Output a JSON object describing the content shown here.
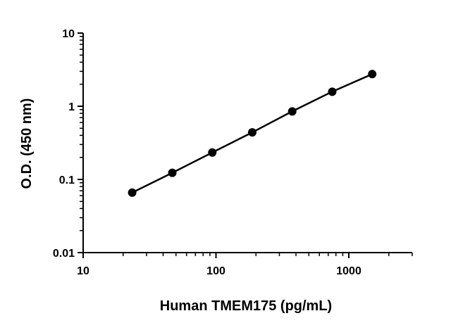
{
  "chart_data": {
    "type": "scatter",
    "title": "",
    "xlabel": "Human TMEM175 (pg/mL)",
    "ylabel": "O.D. (450 nm)",
    "x_scale": "log",
    "y_scale": "log",
    "xlim": [
      10,
      3000
    ],
    "ylim": [
      0.01,
      10
    ],
    "grid": false,
    "legend": "none",
    "x_ticks": [
      {
        "value": 10,
        "label": "10"
      },
      {
        "value": 100,
        "label": "100"
      },
      {
        "value": 1000,
        "label": "1000"
      }
    ],
    "y_ticks": [
      {
        "value": 0.01,
        "label": "0.01"
      },
      {
        "value": 0.1,
        "label": "0.1"
      },
      {
        "value": 1,
        "label": "1"
      },
      {
        "value": 10,
        "label": "10"
      }
    ],
    "series": [
      {
        "x": [
          23.4,
          46.9,
          93.8,
          187.5,
          375,
          750,
          1500
        ],
        "y": [
          0.066,
          0.123,
          0.233,
          0.44,
          0.85,
          1.58,
          2.75
        ]
      }
    ],
    "colors": {
      "marker": "#000000",
      "line": "#000000"
    }
  }
}
